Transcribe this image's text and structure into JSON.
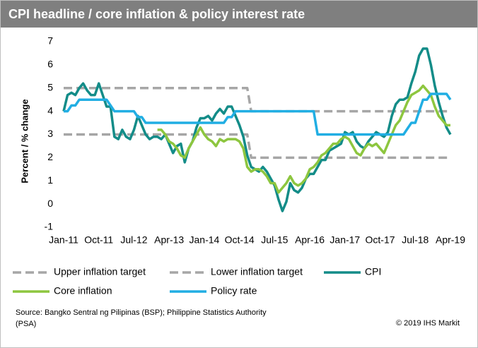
{
  "chart_data": {
    "type": "line",
    "title": "CPI headline  / core inflation & policy interest rate",
    "y_label": "Percent / % change",
    "source": "Source: Bangko Sentral ng Pilipinas (BSP); Philippine Statistics Authority (PSA)",
    "copyright": "© 2019 IHS Markit",
    "ylim": [
      -1,
      7
    ],
    "yticks": [
      -1,
      0,
      1,
      2,
      3,
      4,
      5,
      6,
      7
    ],
    "grid": false,
    "categories": [
      "Jan-11",
      null,
      null,
      null,
      null,
      null,
      null,
      null,
      null,
      "Oct-11",
      null,
      null,
      null,
      null,
      null,
      null,
      null,
      null,
      "Jul-12",
      null,
      null,
      null,
      null,
      null,
      null,
      null,
      null,
      "Apr-13",
      null,
      null,
      null,
      null,
      null,
      null,
      null,
      null,
      "Jan-14",
      null,
      null,
      null,
      null,
      null,
      null,
      null,
      null,
      "Oct-14",
      null,
      null,
      null,
      null,
      null,
      null,
      null,
      null,
      "Jul-15",
      null,
      null,
      null,
      null,
      null,
      null,
      null,
      null,
      "Apr-16",
      null,
      null,
      null,
      null,
      null,
      null,
      null,
      null,
      "Jan-17",
      null,
      null,
      null,
      null,
      null,
      null,
      null,
      null,
      "Oct-17",
      null,
      null,
      null,
      null,
      null,
      null,
      null,
      null,
      "Jul-18",
      null,
      null,
      null,
      null,
      null,
      null,
      null,
      null,
      "Apr-19"
    ],
    "series": [
      {
        "name": "Upper inflation target",
        "color": "#a6a6a6",
        "dashed": true,
        "values": [
          5,
          5,
          5,
          5,
          5,
          5,
          5,
          5,
          5,
          5,
          5,
          5,
          5,
          5,
          5,
          5,
          5,
          5,
          5,
          5,
          5,
          5,
          5,
          5,
          5,
          5,
          5,
          5,
          5,
          5,
          5,
          5,
          5,
          5,
          5,
          5,
          5,
          5,
          5,
          5,
          5,
          5,
          5,
          5,
          5,
          5,
          5,
          5,
          4,
          4,
          4,
          4,
          4,
          4,
          4,
          4,
          4,
          4,
          4,
          4,
          4,
          4,
          4,
          4,
          4,
          4,
          4,
          4,
          4,
          4,
          4,
          4,
          4,
          4,
          4,
          4,
          4,
          4,
          4,
          4,
          4,
          4,
          4,
          4,
          4,
          4,
          4,
          4,
          4,
          4,
          4,
          4,
          4,
          4,
          4,
          4,
          4,
          4,
          4,
          4
        ]
      },
      {
        "name": "Lower inflation target",
        "color": "#a6a6a6",
        "dashed": true,
        "values": [
          3,
          3,
          3,
          3,
          3,
          3,
          3,
          3,
          3,
          3,
          3,
          3,
          3,
          3,
          3,
          3,
          3,
          3,
          3,
          3,
          3,
          3,
          3,
          3,
          3,
          3,
          3,
          3,
          3,
          3,
          3,
          3,
          3,
          3,
          3,
          3,
          3,
          3,
          3,
          3,
          3,
          3,
          3,
          3,
          3,
          3,
          3,
          3,
          2,
          2,
          2,
          2,
          2,
          2,
          2,
          2,
          2,
          2,
          2,
          2,
          2,
          2,
          2,
          2,
          2,
          2,
          2,
          2,
          2,
          2,
          2,
          2,
          2,
          2,
          2,
          2,
          2,
          2,
          2,
          2,
          2,
          2,
          2,
          2,
          2,
          2,
          2,
          2,
          2,
          2,
          2,
          2,
          2,
          2,
          2,
          2,
          2,
          2,
          2,
          2
        ]
      },
      {
        "name": "CPI",
        "color": "#138c88",
        "dashed": false,
        "values": [
          4.0,
          4.7,
          4.8,
          4.7,
          5.0,
          5.2,
          4.9,
          4.7,
          4.7,
          5.2,
          4.7,
          4.2,
          4.2,
          2.9,
          2.8,
          3.2,
          2.9,
          2.8,
          3.2,
          3.8,
          3.4,
          3.0,
          2.8,
          2.9,
          2.9,
          2.8,
          3.0,
          2.6,
          2.2,
          2.5,
          2.6,
          1.8,
          2.4,
          2.7,
          3.3,
          3.7,
          3.7,
          3.8,
          3.6,
          3.9,
          4.1,
          3.9,
          4.2,
          4.2,
          3.8,
          3.4,
          2.9,
          2.1,
          1.6,
          1.5,
          1.4,
          1.6,
          1.4,
          1.1,
          0.8,
          0.2,
          -0.3,
          0.1,
          0.9,
          0.6,
          0.5,
          0.7,
          1.1,
          1.3,
          1.3,
          1.6,
          1.9,
          1.9,
          2.3,
          2.4,
          2.5,
          2.6,
          3.1,
          3.0,
          3.1,
          2.7,
          2.5,
          2.4,
          2.7,
          2.9,
          3.1,
          3.0,
          2.9,
          3.1,
          3.8,
          4.3,
          4.5,
          4.5,
          4.6,
          5.2,
          5.7,
          6.4,
          6.7,
          6.7,
          6.0,
          5.1,
          4.4,
          3.8,
          3.3,
          3.0
        ]
      },
      {
        "name": "Core inflation",
        "color": "#8dc63f",
        "dashed": false,
        "values": [
          null,
          null,
          null,
          null,
          null,
          null,
          null,
          null,
          null,
          null,
          null,
          null,
          null,
          null,
          null,
          null,
          null,
          null,
          null,
          null,
          null,
          null,
          null,
          null,
          3.2,
          3.2,
          3.0,
          2.7,
          2.6,
          2.4,
          2.1,
          2.0,
          2.4,
          2.7,
          3.0,
          3.3,
          3.0,
          2.8,
          2.7,
          2.5,
          2.8,
          2.7,
          2.8,
          2.8,
          2.8,
          2.7,
          2.4,
          1.6,
          1.4,
          1.5,
          1.5,
          1.4,
          1.2,
          0.9,
          0.9,
          0.5,
          0.7,
          0.9,
          1.2,
          0.9,
          0.8,
          0.9,
          1.1,
          1.5,
          1.6,
          1.8,
          2.1,
          2.2,
          2.4,
          2.6,
          2.6,
          2.8,
          2.9,
          2.8,
          2.5,
          2.2,
          2.1,
          2.4,
          2.6,
          2.5,
          2.6,
          2.4,
          2.2,
          2.6,
          3.0,
          3.4,
          3.6,
          4.0,
          4.4,
          4.7,
          4.8,
          4.9,
          5.1,
          4.9,
          4.7,
          4.2,
          3.8,
          3.6,
          3.4,
          3.4
        ]
      },
      {
        "name": "Policy rate",
        "color": "#21aee3",
        "dashed": false,
        "values": [
          4.0,
          4.0,
          4.25,
          4.25,
          4.5,
          4.5,
          4.5,
          4.5,
          4.5,
          4.5,
          4.5,
          4.5,
          4.25,
          4.0,
          4.0,
          4.0,
          4.0,
          4.0,
          4.0,
          3.75,
          3.75,
          3.5,
          3.5,
          3.5,
          3.5,
          3.5,
          3.5,
          3.5,
          3.5,
          3.5,
          3.5,
          3.5,
          3.5,
          3.5,
          3.5,
          3.5,
          3.5,
          3.5,
          3.5,
          3.5,
          3.5,
          3.5,
          3.75,
          3.75,
          4.0,
          4.0,
          4.0,
          4.0,
          4.0,
          4.0,
          4.0,
          4.0,
          4.0,
          4.0,
          4.0,
          4.0,
          4.0,
          4.0,
          4.0,
          4.0,
          4.0,
          4.0,
          4.0,
          4.0,
          4.0,
          3.0,
          3.0,
          3.0,
          3.0,
          3.0,
          3.0,
          3.0,
          3.0,
          3.0,
          3.0,
          3.0,
          3.0,
          3.0,
          3.0,
          3.0,
          3.0,
          3.0,
          3.0,
          3.0,
          3.0,
          3.0,
          3.0,
          3.0,
          3.25,
          3.5,
          3.5,
          4.0,
          4.5,
          4.5,
          4.75,
          4.75,
          4.75,
          4.75,
          4.75,
          4.5
        ]
      }
    ]
  }
}
